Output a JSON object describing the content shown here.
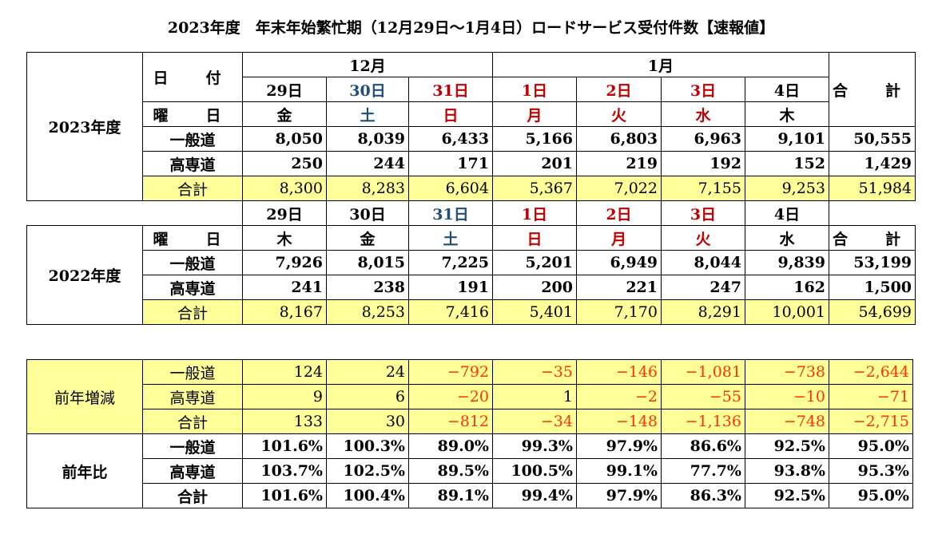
{
  "title": "2023年度　年末年始繁忙期（12月29日～1月4日）ロードサービス受付件数【速報値】",
  "labels": {
    "date_label": "日　付",
    "weekday_label": "曜　日",
    "total_label": "合　計",
    "general_road": "一般道",
    "expressway": "高専道",
    "subtotal": "合計"
  },
  "months": {
    "dec": "12月",
    "jan": "1月"
  },
  "colors": {
    "saturday": "#1f4e79",
    "holiday": "#c00000",
    "negative": "#ff3300",
    "highlight": "#ffff99"
  },
  "fy2023": {
    "label": "2023年度",
    "days": [
      "29日",
      "30日",
      "31日",
      "1日",
      "2日",
      "3日",
      "4日"
    ],
    "weekdays": [
      "金",
      "土",
      "日",
      "月",
      "火",
      "水",
      "木"
    ],
    "general": [
      "8,050",
      "8,039",
      "6,433",
      "5,166",
      "6,803",
      "6,963",
      "9,101",
      "50,555"
    ],
    "expressway": [
      "250",
      "244",
      "171",
      "201",
      "219",
      "192",
      "152",
      "1,429"
    ],
    "total": [
      "8,300",
      "8,283",
      "6,604",
      "5,367",
      "7,022",
      "7,155",
      "9,253",
      "51,984"
    ]
  },
  "fy2022": {
    "label": "2022年度",
    "days": [
      "29日",
      "30日",
      "31日",
      "1日",
      "2日",
      "3日",
      "4日"
    ],
    "weekdays": [
      "木",
      "金",
      "土",
      "日",
      "月",
      "火",
      "水"
    ],
    "general": [
      "7,926",
      "8,015",
      "7,225",
      "5,201",
      "6,949",
      "8,044",
      "9,839",
      "53,199"
    ],
    "expressway": [
      "241",
      "238",
      "191",
      "200",
      "221",
      "247",
      "162",
      "1,500"
    ],
    "total": [
      "8,167",
      "8,253",
      "7,416",
      "5,401",
      "7,170",
      "8,291",
      "10,001",
      "54,699"
    ]
  },
  "change": {
    "label": "前年増減",
    "general": [
      "124",
      "24",
      "−792",
      "−35",
      "−146",
      "−1,081",
      "−738",
      "−2,644"
    ],
    "expressway": [
      "9",
      "6",
      "−20",
      "1",
      "−2",
      "−55",
      "−10",
      "−71"
    ],
    "total": [
      "133",
      "30",
      "−812",
      "−34",
      "−148",
      "−1,136",
      "−748",
      "−2,715"
    ]
  },
  "ratio": {
    "label": "前年比",
    "general": [
      "101.6%",
      "100.3%",
      "89.0%",
      "99.3%",
      "97.9%",
      "86.6%",
      "92.5%",
      "95.0%"
    ],
    "expressway": [
      "103.7%",
      "102.5%",
      "89.5%",
      "100.5%",
      "99.1%",
      "77.7%",
      "93.8%",
      "95.3%"
    ],
    "total": [
      "101.6%",
      "100.4%",
      "89.1%",
      "99.4%",
      "97.9%",
      "86.3%",
      "92.5%",
      "95.0%"
    ]
  }
}
